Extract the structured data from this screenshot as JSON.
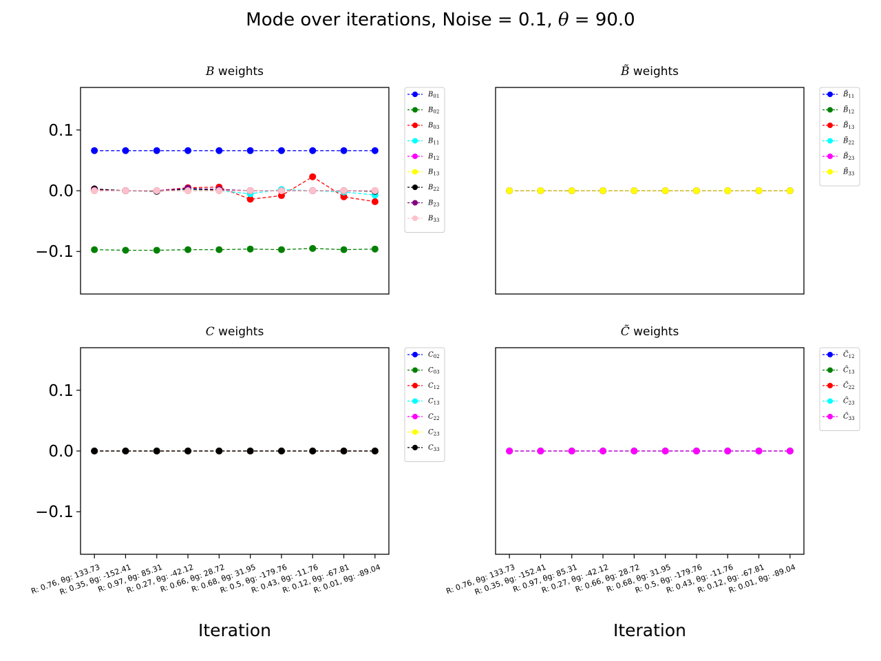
{
  "figure": {
    "title_prefix": "Mode over iterations, Noise = 0.1, ",
    "title_theta": "θ",
    "title_suffix": " = 90.0"
  },
  "chart_data": [
    {
      "type": "line",
      "title": "B weights",
      "title_symbol": "B",
      "title_rest": " weights",
      "ylim": [
        -0.17,
        0.17
      ],
      "yticks": [
        "0.1",
        "0.0",
        "−0.1"
      ],
      "ytick_values": [
        0.1,
        0.0,
        -0.1
      ],
      "show_yticks": true,
      "show_xticks": false,
      "xlabel": "",
      "legend_position": "outside-upper-right",
      "categories": [
        "R: 0.76, θg: 133.73",
        "R: 0.35, θg: -152.41",
        "R: 0.97, θg: 85.31",
        "R: 0.27, θg: -42.12",
        "R: 0.66, θg: 28.72",
        "R: 0.68, θg: 31.95",
        "R: 0.5, θg: -179.76",
        "R: 0.43, θg: -11.76",
        "R: 0.12, θg: -67.81",
        "R: 0.01, θg: -89.04"
      ],
      "series": [
        {
          "name": "B01",
          "base": "B",
          "sub": "01",
          "color": "#0000ff",
          "values": [
            0.066,
            0.066,
            0.066,
            0.066,
            0.066,
            0.066,
            0.066,
            0.066,
            0.066,
            0.066
          ]
        },
        {
          "name": "B02",
          "base": "B",
          "sub": "02",
          "color": "#008000",
          "values": [
            -0.097,
            -0.098,
            -0.098,
            -0.097,
            -0.097,
            -0.096,
            -0.097,
            -0.095,
            -0.097,
            -0.096
          ]
        },
        {
          "name": "B03",
          "base": "B",
          "sub": "03",
          "color": "#ff0000",
          "values": [
            0.002,
            0.0,
            0.0,
            0.005,
            0.006,
            -0.014,
            -0.008,
            0.023,
            -0.01,
            -0.018
          ]
        },
        {
          "name": "B11",
          "base": "B",
          "sub": "11",
          "color": "#00ffff",
          "values": [
            0.0,
            0.0,
            0.0,
            0.002,
            0.0,
            -0.005,
            0.002,
            0.0,
            -0.002,
            -0.007
          ]
        },
        {
          "name": "B12",
          "base": "B",
          "sub": "12",
          "color": "#ff00ff",
          "values": [
            0.0,
            0.0,
            0.0,
            0.0,
            0.0,
            0.0,
            0.0,
            0.0,
            0.0,
            0.0
          ]
        },
        {
          "name": "B13",
          "base": "B",
          "sub": "13",
          "color": "#ffff00",
          "values": [
            0.0,
            0.0,
            0.0,
            0.0,
            0.0,
            0.0,
            0.0,
            0.0,
            0.0,
            0.0
          ]
        },
        {
          "name": "B22",
          "base": "B",
          "sub": "22",
          "color": "#000000",
          "values": [
            0.003,
            0.0,
            -0.001,
            0.003,
            0.001,
            0.0,
            0.0,
            0.0,
            0.0,
            -0.001
          ]
        },
        {
          "name": "B23",
          "base": "B",
          "sub": "23",
          "color": "#800080",
          "values": [
            0.001,
            0.0,
            0.0,
            0.004,
            0.002,
            0.0,
            0.0,
            0.0,
            0.0,
            0.0
          ]
        },
        {
          "name": "B33",
          "base": "B",
          "sub": "33",
          "color": "#ffc0cb",
          "values": [
            0.0,
            0.0,
            0.0,
            0.0,
            0.0,
            0.0,
            0.0,
            0.0,
            0.0,
            0.0
          ]
        }
      ]
    },
    {
      "type": "line",
      "title": "B̃ weights",
      "title_symbol": "B̃",
      "title_rest": " weights",
      "ylim": [
        -0.17,
        0.17
      ],
      "yticks": [],
      "ytick_values": [],
      "show_yticks": false,
      "show_xticks": false,
      "xlabel": "",
      "legend_position": "outside-upper-right",
      "categories": [
        "R: 0.76, θg: 133.73",
        "R: 0.35, θg: -152.41",
        "R: 0.97, θg: 85.31",
        "R: 0.27, θg: -42.12",
        "R: 0.66, θg: 28.72",
        "R: 0.68, θg: 31.95",
        "R: 0.5, θg: -179.76",
        "R: 0.43, θg: -11.76",
        "R: 0.12, θg: -67.81",
        "R: 0.01, θg: -89.04"
      ],
      "series": [
        {
          "name": "B̃11",
          "base": "B̃",
          "sub": "11",
          "color": "#0000ff",
          "values": [
            0,
            0,
            0,
            0,
            0,
            0,
            0,
            0,
            0,
            0
          ]
        },
        {
          "name": "B̃12",
          "base": "B̃",
          "sub": "12",
          "color": "#008000",
          "values": [
            0,
            0,
            0,
            0,
            0,
            0,
            0,
            0,
            0,
            0
          ]
        },
        {
          "name": "B̃13",
          "base": "B̃",
          "sub": "13",
          "color": "#ff0000",
          "values": [
            0,
            0,
            0,
            0,
            0,
            0,
            0,
            0,
            0,
            0
          ]
        },
        {
          "name": "B̃22",
          "base": "B̃",
          "sub": "22",
          "color": "#00ffff",
          "values": [
            0,
            0,
            0,
            0,
            0,
            0,
            0,
            0,
            0,
            0
          ]
        },
        {
          "name": "B̃23",
          "base": "B̃",
          "sub": "23",
          "color": "#ff00ff",
          "values": [
            0,
            0,
            0,
            0,
            0,
            0,
            0,
            0,
            0,
            0
          ]
        },
        {
          "name": "B̃33",
          "base": "B̃",
          "sub": "33",
          "color": "#ffff00",
          "values": [
            0,
            0,
            0,
            0,
            0,
            0,
            0,
            0,
            0,
            0
          ]
        }
      ]
    },
    {
      "type": "line",
      "title": "C weights",
      "title_symbol": "C",
      "title_rest": " weights",
      "ylim": [
        -0.17,
        0.17
      ],
      "yticks": [
        "0.1",
        "0.0",
        "−0.1"
      ],
      "ytick_values": [
        0.1,
        0.0,
        -0.1
      ],
      "show_yticks": true,
      "show_xticks": true,
      "xlabel": "Iteration",
      "legend_position": "outside-upper-right",
      "categories": [
        "R: 0.76, θg: 133.73",
        "R: 0.35, θg: -152.41",
        "R: 0.97, θg: 85.31",
        "R: 0.27, θg: -42.12",
        "R: 0.66, θg: 28.72",
        "R: 0.68, θg: 31.95",
        "R: 0.5, θg: -179.76",
        "R: 0.43, θg: -11.76",
        "R: 0.12, θg: -67.81",
        "R: 0.01, θg: -89.04"
      ],
      "series": [
        {
          "name": "C02",
          "base": "C",
          "sub": "02",
          "color": "#0000ff",
          "values": [
            0,
            0,
            0,
            0,
            0,
            0,
            0,
            0,
            0,
            0
          ]
        },
        {
          "name": "C03",
          "base": "C",
          "sub": "03",
          "color": "#008000",
          "values": [
            0,
            0,
            0,
            0,
            0,
            0,
            0,
            0,
            0,
            0
          ]
        },
        {
          "name": "C12",
          "base": "C",
          "sub": "12",
          "color": "#ff0000",
          "values": [
            0,
            0,
            0,
            0,
            0,
            0,
            0,
            0,
            0,
            0
          ]
        },
        {
          "name": "C13",
          "base": "C",
          "sub": "13",
          "color": "#00ffff",
          "values": [
            0,
            0,
            0,
            0,
            0,
            0,
            0,
            0,
            0,
            0
          ]
        },
        {
          "name": "C22",
          "base": "C",
          "sub": "22",
          "color": "#ff00ff",
          "values": [
            0,
            0,
            0,
            0,
            0,
            0,
            0,
            0,
            0,
            0
          ]
        },
        {
          "name": "C23",
          "base": "C",
          "sub": "23",
          "color": "#ffff00",
          "values": [
            0,
            0,
            0,
            0,
            0,
            0,
            0,
            0,
            0,
            0
          ]
        },
        {
          "name": "C33",
          "base": "C",
          "sub": "33",
          "color": "#000000",
          "values": [
            0,
            0,
            0,
            0,
            0,
            0,
            0,
            0,
            0,
            0
          ]
        }
      ]
    },
    {
      "type": "line",
      "title": "C̃ weights",
      "title_symbol": "C̃",
      "title_rest": " weights",
      "ylim": [
        -0.17,
        0.17
      ],
      "yticks": [],
      "ytick_values": [],
      "show_yticks": false,
      "show_xticks": true,
      "xlabel": "Iteration",
      "legend_position": "outside-upper-right",
      "categories": [
        "R: 0.76, θg: 133.73",
        "R: 0.35, θg: -152.41",
        "R: 0.97, θg: 85.31",
        "R: 0.27, θg: -42.12",
        "R: 0.66, θg: 28.72",
        "R: 0.68, θg: 31.95",
        "R: 0.5, θg: -179.76",
        "R: 0.43, θg: -11.76",
        "R: 0.12, θg: -67.81",
        "R: 0.01, θg: -89.04"
      ],
      "series": [
        {
          "name": "C̃12",
          "base": "C̃",
          "sub": "12",
          "color": "#0000ff",
          "values": [
            0,
            0,
            0,
            0,
            0,
            0,
            0,
            0,
            0,
            0
          ]
        },
        {
          "name": "C̃13",
          "base": "C̃",
          "sub": "13",
          "color": "#008000",
          "values": [
            0,
            0,
            0,
            0,
            0,
            0,
            0,
            0,
            0,
            0
          ]
        },
        {
          "name": "C̃22",
          "base": "C̃",
          "sub": "22",
          "color": "#ff0000",
          "values": [
            0,
            0,
            0,
            0,
            0,
            0,
            0,
            0,
            0,
            0
          ]
        },
        {
          "name": "C̃23",
          "base": "C̃",
          "sub": "23",
          "color": "#00ffff",
          "values": [
            0,
            0,
            0,
            0,
            0,
            0,
            0,
            0,
            0,
            0
          ]
        },
        {
          "name": "C̃33",
          "base": "C̃",
          "sub": "33",
          "color": "#ff00ff",
          "values": [
            0,
            0,
            0,
            0,
            0,
            0,
            0,
            0,
            0,
            0
          ]
        }
      ]
    }
  ]
}
